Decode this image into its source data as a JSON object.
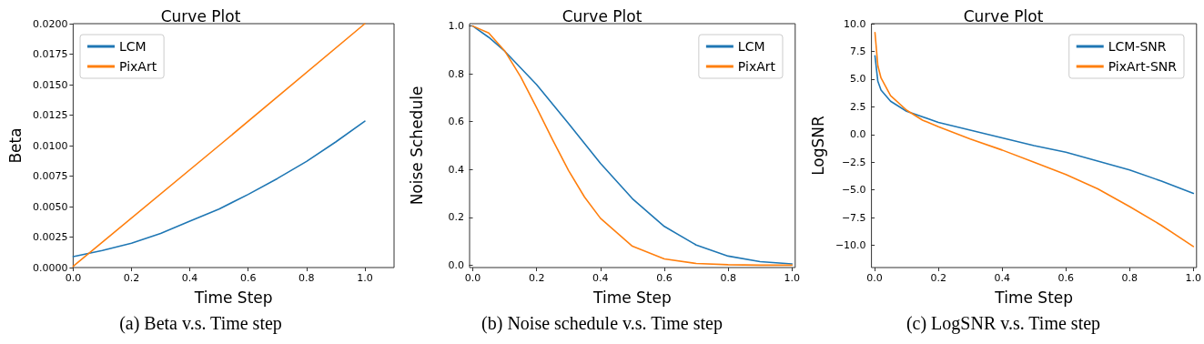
{
  "chart_data": [
    {
      "type": "line",
      "title": "Curve Plot",
      "xlabel": "Time Step",
      "ylabel": "Beta",
      "annotations": [
        "(a) Beta v.s. Time step"
      ],
      "grid": false,
      "legend": "top left",
      "marker": "none",
      "line_style": "solid",
      "xlim": [
        0,
        1.1
      ],
      "xticks": [
        {
          "value": 0,
          "label": "0.0"
        },
        {
          "value": 0.2,
          "label": "0.2"
        },
        {
          "value": 0.4,
          "label": "0.4"
        },
        {
          "value": 0.6,
          "label": "0.6"
        },
        {
          "value": 0.8,
          "label": "0.8"
        },
        {
          "value": 1,
          "label": "1.0"
        }
      ],
      "ylim": [
        0,
        0.02
      ],
      "yticks": [
        {
          "value": 0,
          "label": "0.0000"
        },
        {
          "value": 0.0025,
          "label": "0.0025"
        },
        {
          "value": 0.005,
          "label": "0.0050"
        },
        {
          "value": 0.0075,
          "label": "0.0075"
        },
        {
          "value": 0.01,
          "label": "0.0100"
        },
        {
          "value": 0.0125,
          "label": "0.0125"
        },
        {
          "value": 0.015,
          "label": "0.0150"
        },
        {
          "value": 0.0175,
          "label": "0.0175"
        },
        {
          "value": 0.02,
          "label": "0.0200"
        }
      ],
      "series": [
        {
          "name": "LCM",
          "color": "#1f77b4",
          "x": [
            0,
            0.1,
            0.2,
            0.3,
            0.4,
            0.5,
            0.6,
            0.7,
            0.8,
            0.9,
            1
          ],
          "values": [
            0.0009,
            0.0014,
            0.002,
            0.0028,
            0.0038,
            0.0048,
            0.006,
            0.0073,
            0.0087,
            0.0103,
            0.012
          ]
        },
        {
          "name": "PixArt",
          "color": "#ff7f0e",
          "x": [
            0,
            0.5,
            1
          ],
          "values": [
            0.0001,
            0.01,
            0.02
          ]
        }
      ]
    },
    {
      "type": "line",
      "title": "Curve Plot",
      "xlabel": "Time Step",
      "ylabel": "Noise Schedule",
      "annotations": [
        "(b) Noise schedule v.s. Time step"
      ],
      "grid": false,
      "legend": "top right",
      "marker": "none",
      "line_style": "solid",
      "xlim": [
        -0.01,
        1.01
      ],
      "xticks": [
        {
          "value": 0,
          "label": "0.0"
        },
        {
          "value": 0.2,
          "label": "0.2"
        },
        {
          "value": 0.4,
          "label": "0.4"
        },
        {
          "value": 0.6,
          "label": "0.6"
        },
        {
          "value": 0.8,
          "label": "0.8"
        },
        {
          "value": 1,
          "label": "1.0"
        }
      ],
      "ylim": [
        -0.01,
        1.01
      ],
      "yticks": [
        {
          "value": 0,
          "label": "0.0"
        },
        {
          "value": 0.2,
          "label": "0.2"
        },
        {
          "value": 0.4,
          "label": "0.4"
        },
        {
          "value": 0.6,
          "label": "0.6"
        },
        {
          "value": 0.8,
          "label": "0.8"
        },
        {
          "value": 1,
          "label": "1.0"
        }
      ],
      "series": [
        {
          "name": "LCM",
          "color": "#1f77b4",
          "x": [
            0,
            0.05,
            0.1,
            0.2,
            0.3,
            0.4,
            0.5,
            0.6,
            0.7,
            0.8,
            0.9,
            1
          ],
          "values": [
            1,
            0.953,
            0.895,
            0.755,
            0.592,
            0.426,
            0.278,
            0.162,
            0.084,
            0.038,
            0.015,
            0.005
          ]
        },
        {
          "name": "PixArt",
          "color": "#ff7f0e",
          "x": [
            0,
            0.05,
            0.1,
            0.15,
            0.2,
            0.25,
            0.3,
            0.35,
            0.4,
            0.5,
            0.6,
            0.7,
            0.8,
            0.9,
            1
          ],
          "values": [
            1,
            0.971,
            0.896,
            0.788,
            0.658,
            0.524,
            0.396,
            0.285,
            0.196,
            0.079,
            0.026,
            0.007,
            0.002,
            0,
            0
          ]
        }
      ]
    },
    {
      "type": "line",
      "title": "Curve Plot",
      "xlabel": "Time Step",
      "ylabel": "LogSNR",
      "annotations": [
        "(c) LogSNR v.s. Time step"
      ],
      "grid": false,
      "legend": "top right",
      "marker": "none",
      "line_style": "solid",
      "xlim": [
        -0.01,
        1.01
      ],
      "xticks": [
        {
          "value": 0,
          "label": "0.0"
        },
        {
          "value": 0.2,
          "label": "0.2"
        },
        {
          "value": 0.4,
          "label": "0.4"
        },
        {
          "value": 0.6,
          "label": "0.6"
        },
        {
          "value": 0.8,
          "label": "0.8"
        },
        {
          "value": 1,
          "label": "1.0"
        }
      ],
      "ylim": [
        -12,
        10
      ],
      "yticks": [
        {
          "value": -10,
          "label": "−10.0"
        },
        {
          "value": -7.5,
          "label": "−7.5"
        },
        {
          "value": -5,
          "label": "−5.0"
        },
        {
          "value": -2.5,
          "label": "−2.5"
        },
        {
          "value": 0,
          "label": "0.0"
        },
        {
          "value": 2.5,
          "label": "2.5"
        },
        {
          "value": 5,
          "label": "5.0"
        },
        {
          "value": 7.5,
          "label": "7.5"
        },
        {
          "value": 10,
          "label": "10.0"
        }
      ],
      "series": [
        {
          "name": "LCM-SNR",
          "color": "#1f77b4",
          "x": [
            0.001,
            0.01,
            0.02,
            0.05,
            0.1,
            0.2,
            0.3,
            0.4,
            0.5,
            0.6,
            0.7,
            0.8,
            0.9,
            1
          ],
          "values": [
            7.1,
            4.8,
            4.0,
            3.0,
            2.1,
            1.1,
            0.4,
            -0.3,
            -1.0,
            -1.6,
            -2.4,
            -3.2,
            -4.2,
            -5.3
          ]
        },
        {
          "name": "PixArt-SNR",
          "color": "#ff7f0e",
          "x": [
            0.001,
            0.01,
            0.02,
            0.05,
            0.1,
            0.15,
            0.2,
            0.3,
            0.4,
            0.5,
            0.6,
            0.7,
            0.8,
            0.9,
            1
          ],
          "values": [
            9.2,
            6.2,
            5.1,
            3.5,
            2.2,
            1.3,
            0.7,
            -0.4,
            -1.4,
            -2.5,
            -3.6,
            -4.9,
            -6.5,
            -8.2,
            -10.1
          ]
        }
      ]
    }
  ]
}
